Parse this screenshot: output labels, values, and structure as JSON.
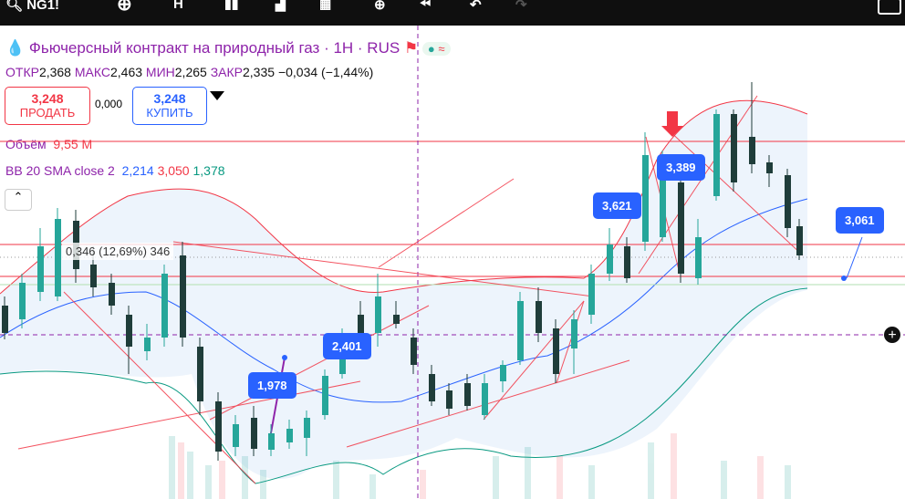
{
  "toolbar": {
    "symbol": "NG1!",
    "interval": "H"
  },
  "header": {
    "title": "Фьючерсный контракт на природный газ · 1H · RUS"
  },
  "ohlc": {
    "open_label": "ОТКР",
    "open": "2,368",
    "high_label": "МАКС",
    "high": "2,463",
    "low_label": "МИН",
    "low": "2,265",
    "close_label": "ЗАКР",
    "close": "2,335",
    "change": "−0,034 (−1,44%)"
  },
  "trade": {
    "sell_price": "3,248",
    "sell_label": "ПРОДАТЬ",
    "spread": "0,000",
    "buy_price": "3,248",
    "buy_label": "КУПИТЬ"
  },
  "volume": {
    "label": "Объём",
    "value": "9,55 M"
  },
  "indicator": {
    "name": "BB 20 SMA close 2",
    "basis": "2,214",
    "upper": "3,050",
    "lower": "1,378"
  },
  "annotations": [
    {
      "label": "0,346 (12,69%) 346"
    },
    {
      "label": "1,978"
    },
    {
      "label": "2,401"
    },
    {
      "label": "3,621"
    },
    {
      "label": "3,389"
    },
    {
      "label": "3,061"
    }
  ]
}
